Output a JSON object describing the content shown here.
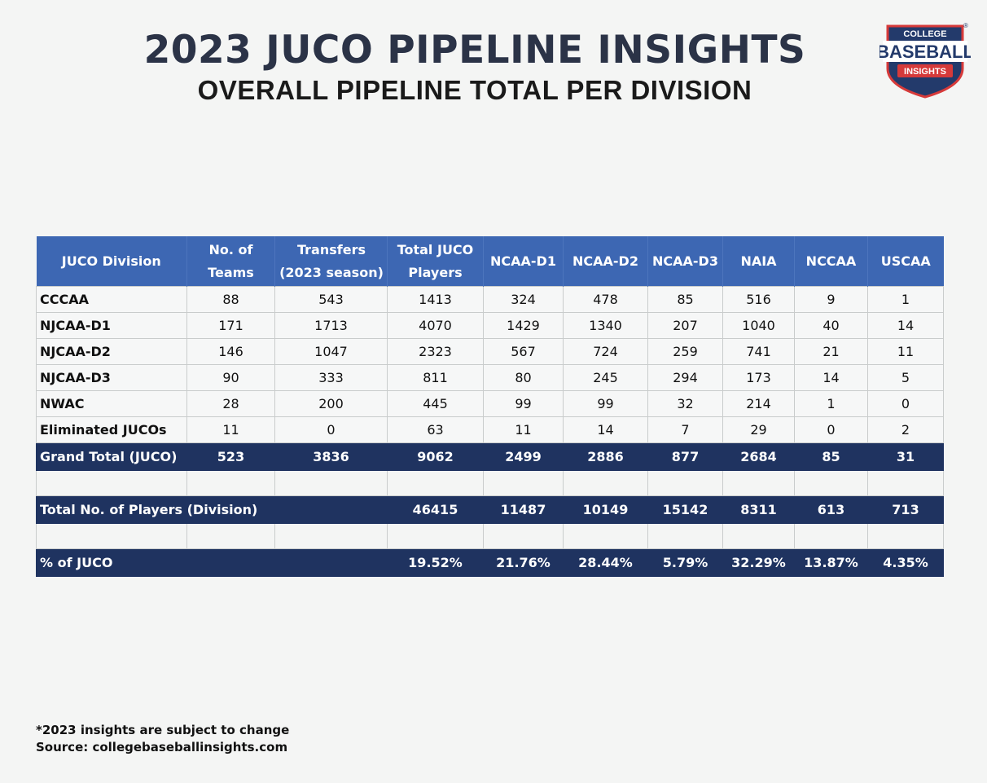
{
  "title": "2023 JUCO PIPELINE INSIGHTS",
  "subtitle": "OVERALL PIPELINE TOTAL PER DIVISION",
  "logo": {
    "line1": "COLLEGE",
    "line2": "BASEBALL",
    "line3": "INSIGHTS",
    "registered": "®",
    "colors": {
      "navy": "#233a6b",
      "red": "#d63a3a",
      "white": "#ffffff"
    }
  },
  "colors": {
    "header_blue": "#3d67b3",
    "dark_navy": "#1f3360"
  },
  "chart_data": {
    "type": "table",
    "columns": [
      "JUCO Division",
      "No. of Teams",
      "Transfers (2023 season)",
      "Total JUCO Players",
      "NCAA-D1",
      "NCAA-D2",
      "NCAA-D3",
      "NAIA",
      "NCCAA",
      "USCAA"
    ],
    "rows": [
      [
        "CCCAA",
        "88",
        "543",
        "1413",
        "324",
        "478",
        "85",
        "516",
        "9",
        "1"
      ],
      [
        "NJCAA-D1",
        "171",
        "1713",
        "4070",
        "1429",
        "1340",
        "207",
        "1040",
        "40",
        "14"
      ],
      [
        "NJCAA-D2",
        "146",
        "1047",
        "2323",
        "567",
        "724",
        "259",
        "741",
        "21",
        "11"
      ],
      [
        "NJCAA-D3",
        "90",
        "333",
        "811",
        "80",
        "245",
        "294",
        "173",
        "14",
        "5"
      ],
      [
        "NWAC",
        "28",
        "200",
        "445",
        "99",
        "99",
        "32",
        "214",
        "1",
        "0"
      ],
      [
        "Eliminated JUCOs",
        "11",
        "0",
        "63",
        "11",
        "14",
        "7",
        "29",
        "0",
        "2"
      ]
    ],
    "grand_total": [
      "Grand Total (JUCO)",
      "523",
      "3836",
      "9062",
      "2499",
      "2886",
      "877",
      "2684",
      "85",
      "31"
    ],
    "total_players": {
      "label": "Total No. of Players (Division)",
      "values": [
        "46415",
        "11487",
        "10149",
        "15142",
        "8311",
        "613",
        "713"
      ]
    },
    "pct_juco": {
      "label": "% of JUCO",
      "values": [
        "19.52%",
        "21.76%",
        "28.44%",
        "5.79%",
        "32.29%",
        "13.87%",
        "4.35%"
      ]
    }
  },
  "footer": {
    "note": "*2023 insights are subject to change",
    "source": "Source: collegebaseballinsights.com"
  }
}
